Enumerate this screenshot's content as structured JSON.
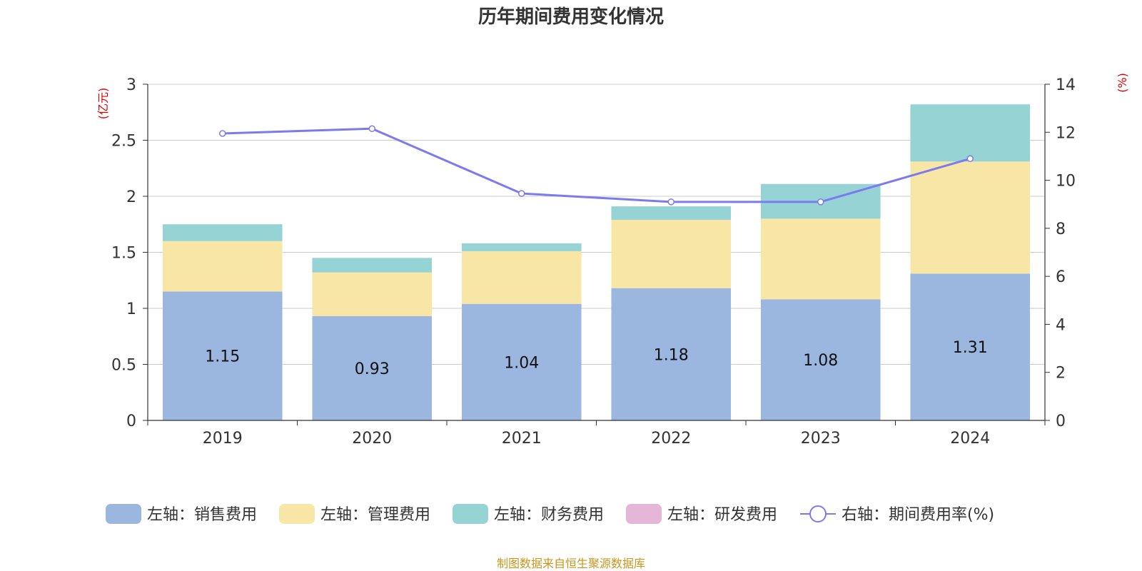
{
  "chart_data": {
    "type": "bar",
    "title": "历年期间费用变化情况",
    "source": "制图数据来自恒生聚源数据库",
    "left_axis": {
      "unit": "(亿元)",
      "min": 0,
      "max": 3,
      "ticks": [
        "0",
        "0.5",
        "1",
        "1.5",
        "2",
        "2.5",
        "3"
      ]
    },
    "right_axis": {
      "unit": "(%)",
      "min": 0,
      "max": 14,
      "ticks": [
        "0",
        "2",
        "4",
        "6",
        "8",
        "10",
        "12",
        "14"
      ]
    },
    "categories": [
      "2019",
      "2020",
      "2021",
      "2022",
      "2023",
      "2024"
    ],
    "series": [
      {
        "name": "左轴：销售费用",
        "type": "bar",
        "axis": "left",
        "color": "#9bb7e0",
        "values": [
          1.15,
          0.93,
          1.04,
          1.18,
          1.08,
          1.31
        ],
        "labels": [
          "1.15",
          "0.93",
          "1.04",
          "1.18",
          "1.08",
          "1.31"
        ]
      },
      {
        "name": "左轴：管理费用",
        "type": "bar",
        "axis": "left",
        "color": "#f7e6a6",
        "values": [
          0.45,
          0.39,
          0.47,
          0.61,
          0.72,
          1.0
        ]
      },
      {
        "name": "左轴：财务费用",
        "type": "bar",
        "axis": "left",
        "color": "#96d3d4",
        "values": [
          0.15,
          0.13,
          0.07,
          0.12,
          0.31,
          0.51
        ]
      },
      {
        "name": "左轴：研发费用",
        "type": "bar",
        "axis": "left",
        "color": "#e6b6d8",
        "values": [
          0,
          0,
          0,
          0,
          0,
          0
        ]
      },
      {
        "name": "右轴：期间费用率(%)",
        "type": "line",
        "axis": "right",
        "color": "#7b7bef",
        "values": [
          11.95,
          12.15,
          9.45,
          9.1,
          9.1,
          10.9
        ]
      }
    ],
    "grid": true,
    "legend_position": "bottom"
  }
}
